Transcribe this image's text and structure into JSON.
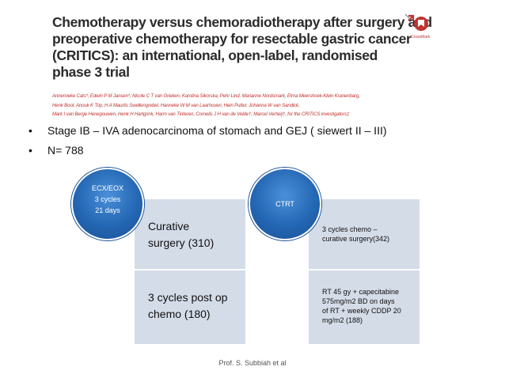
{
  "paper": {
    "title_lines": [
      "Chemotherapy versus chemoradiotherapy after surgery and",
      "preoperative chemotherapy for resectable gastric cancer",
      "(CRITICS): an international, open-label, randomised",
      "phase 3 trial"
    ],
    "author_lines": [
      "Annemieke Cats*, Edwin P M Jansen*, Nicole C T van Grieken, Karolina Sikorska, Pehr Lind, Marianne Nordsmark, Elma Meershoek-Klein Kranenbarg,",
      "Henk Boot, Anouk K Trip, H A Maurits Swellengrebel, Hanneke W M van Laarhoven, Hein Putter, Johanna W van Sandick,",
      "Mark I van Berge Henegouwen, Henk H Hartgrink, Harm van Tinteren, Cornelis J H van de Velde†, Marcel Verheij†, for the CRITICS investigators‡"
    ],
    "crossmark_label": "CrossMark"
  },
  "bullets": [
    "Stage IB – IVA adenocarcinoma of stomach and GEJ ( siewert II – III)",
    "N= 788"
  ],
  "left_arm": {
    "circle_lines": [
      "ECX/EOX",
      "3 cycles",
      "21 days"
    ],
    "box_top": "Curative\nsurgery (310)",
    "box_bottom": "3 cycles post op\nchemo (180)"
  },
  "right_arm": {
    "circle_lines": [
      "CTRT"
    ],
    "box_top": "3 cycles chemo –\ncurative surgery(342)",
    "box_bottom": "RT 45 gy + capecitabine\n575mg/m2 BD on days\nof RT + weekly CDDP 20\nmg/m2  (188)"
  },
  "footer": "Prof. S. Subbiah et al",
  "colors": {
    "circle_blue": "#2467b4",
    "box_fill": "#d4dce8",
    "author_red": "#c0332f"
  },
  "icons": {
    "crossmark": "crossmark-icon"
  }
}
